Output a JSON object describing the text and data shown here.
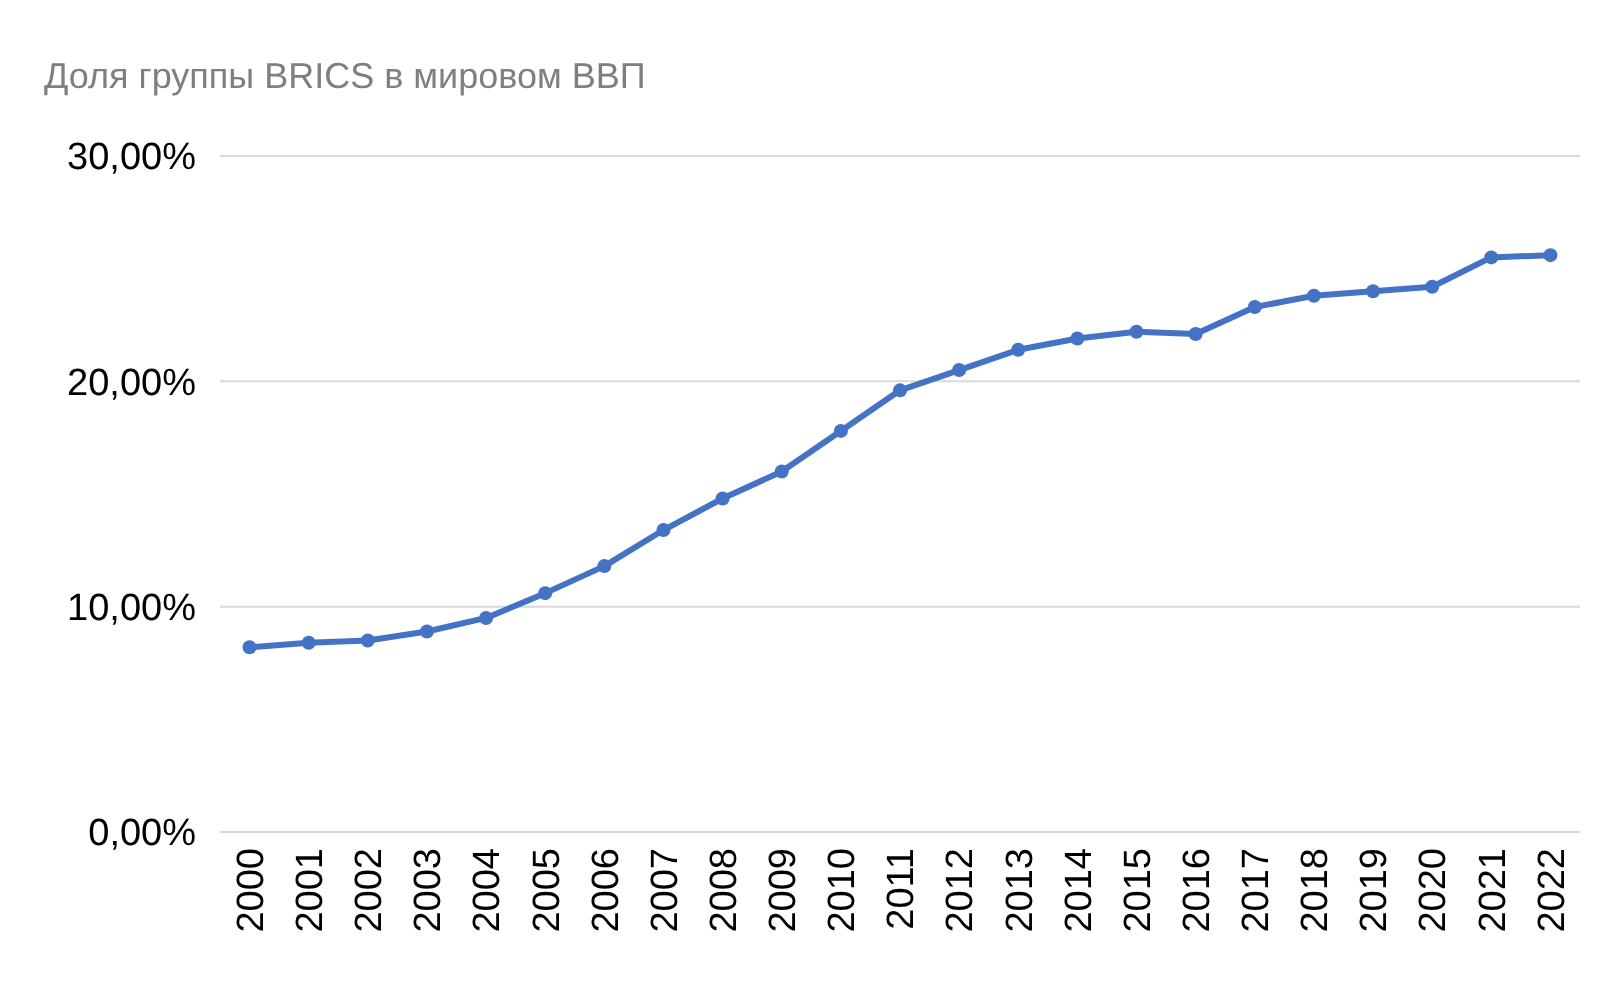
{
  "chart_data": {
    "type": "line",
    "title": "Доля группы BRICS в мировом ВВП",
    "categories": [
      "2000",
      "2001",
      "2002",
      "2003",
      "2004",
      "2005",
      "2006",
      "2007",
      "2008",
      "2009",
      "2010",
      "2011",
      "2012",
      "2013",
      "2014",
      "2015",
      "2016",
      "2017",
      "2018",
      "2019",
      "2020",
      "2021",
      "2022"
    ],
    "series": [
      {
        "color": "#4472c4",
        "values": [
          8.2,
          8.4,
          8.5,
          8.9,
          9.5,
          10.6,
          11.8,
          13.4,
          14.8,
          16.0,
          17.8,
          19.6,
          20.5,
          21.4,
          21.9,
          22.2,
          22.1,
          23.3,
          23.8,
          24.0,
          24.2,
          25.5,
          25.6
        ]
      }
    ],
    "ylim": [
      0,
      30
    ],
    "yticks": [
      {
        "value": 0,
        "label": "0,00%"
      },
      {
        "value": 10,
        "label": "10,00%"
      },
      {
        "value": 20,
        "label": "20,00%"
      },
      {
        "value": 30,
        "label": "30,00%"
      }
    ],
    "grid": "y",
    "marker": "circle",
    "line_style": "solid"
  }
}
